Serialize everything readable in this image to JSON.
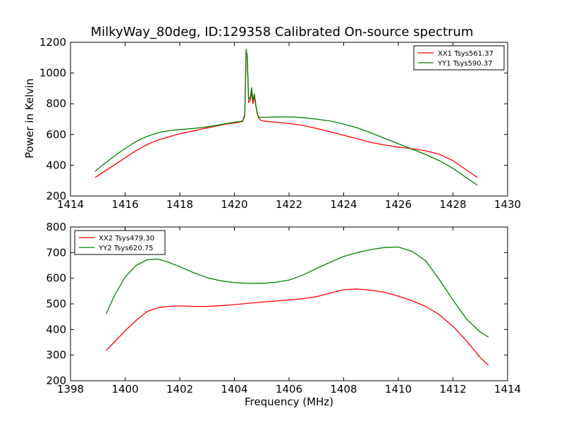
{
  "figure": {
    "title": "MilkyWay_80deg, ID:129358 Calibrated On-source spectrum",
    "ylabel": "Power in Kelvin",
    "xlabel": "Frequency (MHz)"
  },
  "chart_data": [
    {
      "type": "line",
      "grid": false,
      "legend_position": "top-right",
      "xlim": [
        1414,
        1430
      ],
      "ylim": [
        200,
        1200
      ],
      "xticks": [
        1414,
        1416,
        1418,
        1420,
        1422,
        1424,
        1426,
        1428,
        1430
      ],
      "yticks": [
        200,
        400,
        600,
        800,
        1000,
        1200
      ],
      "series": [
        {
          "name": "XX1 Tsys561.37",
          "color": "#ff0000",
          "x": [
            1414.9,
            1415.2,
            1415.5,
            1415.8,
            1416.1,
            1416.4,
            1416.7,
            1417.0,
            1417.3,
            1417.6,
            1418.0,
            1418.4,
            1418.8,
            1419.2,
            1419.6,
            1420.0,
            1420.3,
            1420.38,
            1420.43,
            1420.47,
            1420.52,
            1420.58,
            1420.63,
            1420.68,
            1420.73,
            1420.78,
            1420.83,
            1420.88,
            1420.95,
            1421.05,
            1421.2,
            1421.5,
            1422.0,
            1422.5,
            1423.0,
            1423.5,
            1424.0,
            1424.5,
            1425.0,
            1425.5,
            1426.0,
            1426.5,
            1427.0,
            1427.5,
            1428.0,
            1428.5,
            1428.9
          ],
          "values": [
            320,
            355,
            390,
            425,
            460,
            495,
            525,
            550,
            570,
            585,
            605,
            620,
            635,
            650,
            665,
            675,
            685,
            720,
            1140,
            1100,
            810,
            820,
            880,
            800,
            850,
            790,
            750,
            710,
            695,
            688,
            685,
            680,
            672,
            660,
            640,
            618,
            595,
            572,
            548,
            532,
            518,
            508,
            494,
            472,
            430,
            368,
            320
          ]
        },
        {
          "name": "YY1 Tsys590.37",
          "color": "#008000",
          "x": [
            1414.9,
            1415.2,
            1415.5,
            1415.8,
            1416.1,
            1416.4,
            1416.7,
            1417.0,
            1417.3,
            1417.6,
            1418.0,
            1418.4,
            1418.8,
            1419.2,
            1419.6,
            1420.0,
            1420.3,
            1420.38,
            1420.43,
            1420.47,
            1420.52,
            1420.58,
            1420.63,
            1420.68,
            1420.73,
            1420.78,
            1420.83,
            1420.88,
            1420.95,
            1421.05,
            1421.2,
            1421.5,
            1422.0,
            1422.5,
            1423.0,
            1423.5,
            1424.0,
            1424.5,
            1425.0,
            1425.5,
            1426.0,
            1426.5,
            1427.0,
            1427.5,
            1428.0,
            1428.5,
            1428.9
          ],
          "values": [
            360,
            405,
            445,
            485,
            520,
            555,
            580,
            600,
            615,
            625,
            632,
            638,
            645,
            655,
            668,
            680,
            688,
            730,
            1155,
            1110,
            830,
            840,
            905,
            820,
            865,
            800,
            740,
            715,
            712,
            712,
            712,
            714,
            715,
            710,
            700,
            688,
            668,
            643,
            610,
            575,
            540,
            505,
            470,
            430,
            380,
            318,
            270
          ]
        }
      ]
    },
    {
      "type": "line",
      "grid": false,
      "legend_position": "top-left",
      "xlim": [
        1398,
        1414
      ],
      "ylim": [
        200,
        800
      ],
      "xticks": [
        1398,
        1400,
        1402,
        1404,
        1406,
        1408,
        1410,
        1412,
        1414
      ],
      "yticks": [
        200,
        300,
        400,
        500,
        600,
        700,
        800
      ],
      "series": [
        {
          "name": "XX2 Tsys479.30",
          "color": "#ff0000",
          "x": [
            1399.3,
            1399.6,
            1400.0,
            1400.4,
            1400.8,
            1401.2,
            1401.6,
            1402.0,
            1402.5,
            1403.0,
            1403.5,
            1404.0,
            1404.5,
            1405.0,
            1405.5,
            1406.0,
            1406.5,
            1407.0,
            1407.5,
            1408.0,
            1408.5,
            1409.0,
            1409.5,
            1410.0,
            1410.5,
            1411.0,
            1411.5,
            1412.0,
            1412.5,
            1413.0,
            1413.3
          ],
          "values": [
            318,
            350,
            395,
            435,
            470,
            485,
            490,
            492,
            490,
            490,
            493,
            497,
            502,
            507,
            511,
            515,
            520,
            528,
            542,
            555,
            558,
            553,
            545,
            530,
            512,
            490,
            458,
            412,
            355,
            290,
            260
          ]
        },
        {
          "name": "YY2 Tsys620.75",
          "color": "#008000",
          "x": [
            1399.3,
            1399.6,
            1400.0,
            1400.4,
            1400.8,
            1401.2,
            1401.6,
            1402.0,
            1402.5,
            1403.0,
            1403.5,
            1404.0,
            1404.5,
            1405.0,
            1405.5,
            1406.0,
            1406.5,
            1407.0,
            1407.5,
            1408.0,
            1408.5,
            1409.0,
            1409.5,
            1410.0,
            1410.5,
            1411.0,
            1411.5,
            1412.0,
            1412.5,
            1413.0,
            1413.3
          ],
          "values": [
            460,
            530,
            605,
            650,
            672,
            675,
            662,
            645,
            622,
            602,
            590,
            583,
            580,
            580,
            584,
            593,
            612,
            638,
            662,
            685,
            700,
            712,
            720,
            722,
            705,
            668,
            595,
            515,
            440,
            390,
            370
          ]
        }
      ]
    }
  ]
}
